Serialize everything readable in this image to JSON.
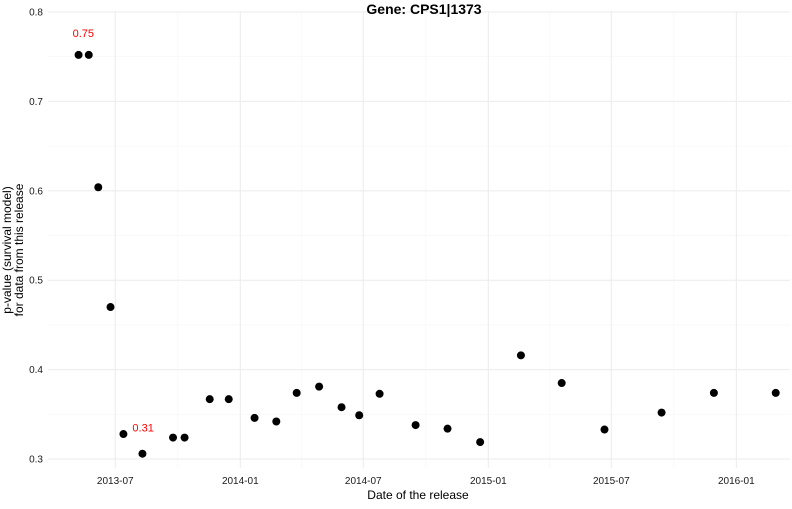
{
  "chart_data": {
    "type": "scatter",
    "title": "Gene: CPS1|1373",
    "xlabel": "Date of the release",
    "ylabel": [
      "p-value (survival model)",
      "for data from this release"
    ],
    "xlim": [
      "2013-03-24",
      "2016-03-20"
    ],
    "ylim": [
      0.29,
      0.8
    ],
    "grid": true,
    "x_ticks": [
      {
        "value": "2013-07-01",
        "label": "2013-07"
      },
      {
        "value": "2014-01-01",
        "label": "2014-01"
      },
      {
        "value": "2014-07-01",
        "label": "2014-07"
      },
      {
        "value": "2015-01-01",
        "label": "2015-01"
      },
      {
        "value": "2015-07-01",
        "label": "2015-07"
      },
      {
        "value": "2016-01-01",
        "label": "2016-01"
      }
    ],
    "y_ticks": [
      {
        "value": 0.3,
        "label": "0.3"
      },
      {
        "value": 0.4,
        "label": "0.4"
      },
      {
        "value": 0.5,
        "label": "0.5"
      },
      {
        "value": 0.6,
        "label": "0.6"
      },
      {
        "value": 0.7,
        "label": "0.7"
      },
      {
        "value": 0.8,
        "label": "0.8"
      }
    ],
    "points": [
      {
        "x": "2013-05-08",
        "y": 0.752
      },
      {
        "x": "2013-05-23",
        "y": 0.752
      },
      {
        "x": "2013-06-06",
        "y": 0.604
      },
      {
        "x": "2013-06-24",
        "y": 0.47
      },
      {
        "x": "2013-07-13",
        "y": 0.328
      },
      {
        "x": "2013-08-10",
        "y": 0.306
      },
      {
        "x": "2013-09-24",
        "y": 0.324
      },
      {
        "x": "2013-10-11",
        "y": 0.324
      },
      {
        "x": "2013-11-17",
        "y": 0.367
      },
      {
        "x": "2013-12-15",
        "y": 0.367
      },
      {
        "x": "2014-01-22",
        "y": 0.346
      },
      {
        "x": "2014-02-23",
        "y": 0.342
      },
      {
        "x": "2014-03-25",
        "y": 0.374
      },
      {
        "x": "2014-04-27",
        "y": 0.381
      },
      {
        "x": "2014-05-30",
        "y": 0.358
      },
      {
        "x": "2014-06-25",
        "y": 0.349
      },
      {
        "x": "2014-07-25",
        "y": 0.373
      },
      {
        "x": "2014-09-16",
        "y": 0.338
      },
      {
        "x": "2014-11-02",
        "y": 0.334
      },
      {
        "x": "2014-12-20",
        "y": 0.319
      },
      {
        "x": "2015-02-18",
        "y": 0.416
      },
      {
        "x": "2015-04-19",
        "y": 0.385
      },
      {
        "x": "2015-06-21",
        "y": 0.333
      },
      {
        "x": "2015-09-13",
        "y": 0.352
      },
      {
        "x": "2015-11-29",
        "y": 0.374
      },
      {
        "x": "2016-02-28",
        "y": 0.374
      }
    ],
    "annotations": [
      {
        "text": "0.75",
        "x": "2013-05-15",
        "y": 0.772,
        "color": "#ff0000"
      },
      {
        "text": "0.31",
        "x": "2013-08-11",
        "y": 0.331,
        "color": "#ff0000"
      }
    ],
    "point_color": "#000000",
    "annotation_color": "#ff0000"
  }
}
